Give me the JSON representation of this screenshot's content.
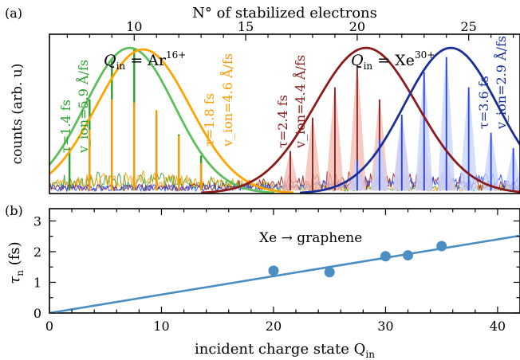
{
  "chart_data": [
    {
      "panel": "(a)",
      "type": "line",
      "top_axis_label": "N° of stabilized electrons",
      "top_axis_ticks": [
        10,
        15,
        20,
        25
      ],
      "top_xlim": [
        6.2,
        27.3
      ],
      "ylabel": "counts (arb. u)",
      "ylim": [
        0,
        1.05
      ],
      "y_ticks_labeled": false,
      "grid": false,
      "group_labels": [
        {
          "text_main": "Q",
          "text_sub": "in",
          "text_rest": " = Ar",
          "text_sup": "16+",
          "group": "argon"
        },
        {
          "text_main": "Q",
          "text_sub": "in",
          "text_rest": " = Xe",
          "text_sup": "30+",
          "group": "xenon"
        }
      ],
      "series": [
        {
          "name": "Ar16+ τ=1.4 fs",
          "color": "#2ca02c",
          "fit_color": "#5cbf5c",
          "annotation": [
            "τ=1.4 fs",
            "v_ion=5.9 Å/fs"
          ],
          "gaussian_fit": {
            "center": 9.8,
            "sigma": 2.0,
            "amplitude": 0.96
          },
          "peaks": [
            {
              "x": 7.1,
              "y": 0.3
            },
            {
              "x": 8.0,
              "y": 0.62
            },
            {
              "x": 9.0,
              "y": 0.88
            },
            {
              "x": 10.0,
              "y": 0.96
            },
            {
              "x": 11.0,
              "y": 0.52
            },
            {
              "x": 12.0,
              "y": 0.39
            },
            {
              "x": 13.0,
              "y": 0.25
            }
          ]
        },
        {
          "name": "Ar16+ τ=1.8 fs",
          "color": "#ff9900",
          "fit_color": "#ffa500",
          "annotation": [
            "τ=1.8 fs",
            "v_ion=4.6 Å/fs"
          ],
          "gaussian_fit": {
            "center": 10.4,
            "sigma": 2.1,
            "amplitude": 0.95
          },
          "peaks": [
            {
              "x": 8.0,
              "y": 0.42
            },
            {
              "x": 9.0,
              "y": 0.62
            },
            {
              "x": 10.0,
              "y": 0.6
            },
            {
              "x": 11.0,
              "y": 0.55
            },
            {
              "x": 12.0,
              "y": 0.38
            },
            {
              "x": 13.0,
              "y": 0.2
            }
          ]
        },
        {
          "name": "Xe30+ τ=2.4 fs",
          "color": "#8b1a1a",
          "fit_color": "#8b1a1a",
          "annotation": [
            "τ=2.4 fs",
            "v_ion=4.4 Å/fs"
          ],
          "gaussian_fit": {
            "center": 20.4,
            "sigma": 2.3,
            "amplitude": 0.96
          },
          "peaks": [
            {
              "x": 17.0,
              "y": 0.28
            },
            {
              "x": 18.0,
              "y": 0.5
            },
            {
              "x": 19.0,
              "y": 0.7
            },
            {
              "x": 20.0,
              "y": 0.84
            },
            {
              "x": 21.0,
              "y": 0.62
            },
            {
              "x": 22.0,
              "y": 0.5
            },
            {
              "x": 23.0,
              "y": 0.4
            },
            {
              "x": 24.0,
              "y": 0.25
            }
          ]
        },
        {
          "name": "Xe30+ τ=3.6 fs",
          "color": "#1f3fff",
          "fit_color": "#1a2f9a",
          "annotation": [
            "τ=3.6 fs",
            "v_ion=2.9 Å/fs"
          ],
          "gaussian_fit": {
            "center": 24.2,
            "sigma": 2.1,
            "amplitude": 0.96
          },
          "peaks": [
            {
              "x": 20.0,
              "y": 0.22
            },
            {
              "x": 21.0,
              "y": 0.36
            },
            {
              "x": 22.0,
              "y": 0.52
            },
            {
              "x": 23.0,
              "y": 0.8
            },
            {
              "x": 24.0,
              "y": 0.9
            },
            {
              "x": 25.0,
              "y": 0.7
            },
            {
              "x": 26.0,
              "y": 0.4
            },
            {
              "x": 27.0,
              "y": 0.3
            }
          ]
        }
      ]
    },
    {
      "panel": "(b)",
      "type": "scatter",
      "xlabel": "incident charge state Q_in",
      "xlabel_main": "incident charge state Q",
      "xlabel_sub": "in",
      "ylabel_main": "τ",
      "ylabel_sub": "n",
      "ylabel_rest": " (fs)",
      "xlim": [
        0,
        42
      ],
      "ylim": [
        0,
        3.4
      ],
      "x_ticks": [
        0,
        10,
        20,
        30,
        40
      ],
      "y_ticks": [
        0,
        1,
        2,
        3
      ],
      "annotation": "Xe → graphene",
      "marker_color": "#4a8ec3",
      "points": [
        {
          "x": 20,
          "y": 1.38
        },
        {
          "x": 25,
          "y": 1.33
        },
        {
          "x": 30,
          "y": 1.85
        },
        {
          "x": 32,
          "y": 1.88
        },
        {
          "x": 35,
          "y": 2.18
        }
      ],
      "fit_line": {
        "slope": 0.06,
        "intercept": 0.0
      }
    }
  ]
}
